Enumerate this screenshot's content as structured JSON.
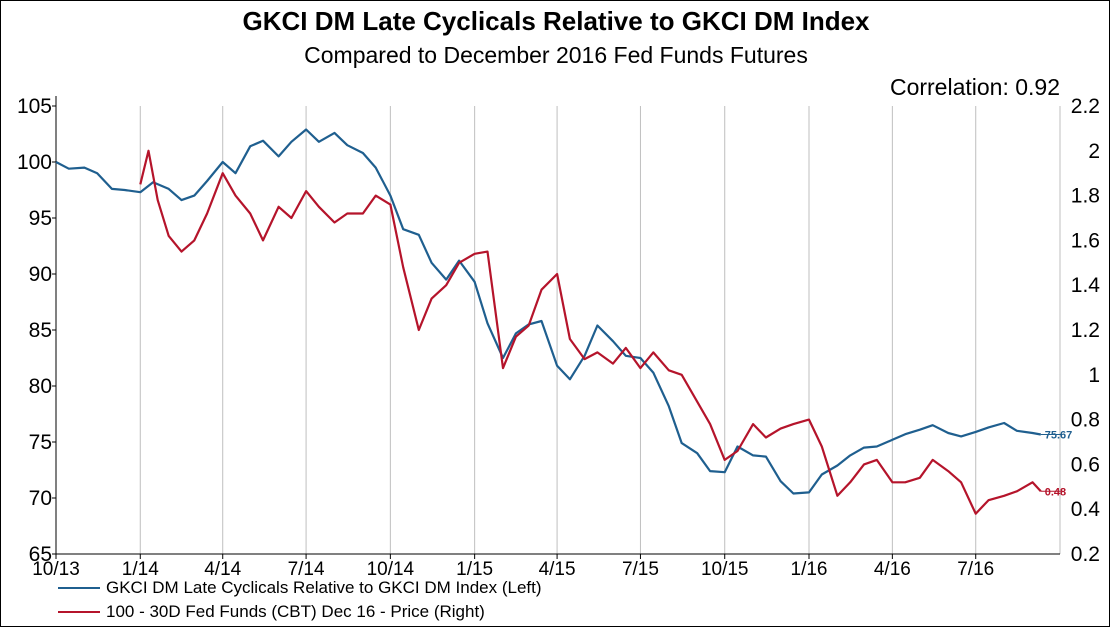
{
  "title": "GKCI DM Late Cyclicals Relative to GKCI DM Index",
  "subtitle": "Compared to December 2016 Fed Funds Futures",
  "correlation_text": "Correlation: 0.92",
  "colors": {
    "left": "#1f5f8f",
    "right": "#b5142b",
    "grid": "#bfbfbf"
  },
  "chart_data": {
    "type": "line",
    "title": "GKCI DM Late Cyclicals Relative to GKCI DM Index",
    "subtitle": "Compared to December 2016 Fed Funds Futures",
    "x_axis": {
      "start": "2013-10",
      "end": "2016-10",
      "tick_labels": [
        "10/13",
        "1/14",
        "4/14",
        "7/14",
        "10/14",
        "1/15",
        "4/15",
        "7/15",
        "10/15",
        "1/16",
        "4/16",
        "7/16"
      ]
    },
    "y_left": {
      "min": 65,
      "max": 105,
      "ticks": [
        "65",
        "70",
        "75",
        "80",
        "85",
        "90",
        "95",
        "100",
        "105"
      ]
    },
    "y_right": {
      "min": 0.2,
      "max": 2.2,
      "ticks": [
        "0.2",
        "0.4",
        "0.6",
        "0.8",
        "1",
        "1.2",
        "1.4",
        "1.6",
        "1.8",
        "2",
        "2.2"
      ]
    },
    "grid": "vertical",
    "legend_position": "bottom-left",
    "series": [
      {
        "name": "GKCI DM Late Cyclicals Relative to GKCI DM Index  (Left)",
        "axis": "left",
        "end_label": "75.67",
        "points": [
          [
            "2013-10-01",
            100.0
          ],
          [
            "2013-10-15",
            99.4
          ],
          [
            "2013-11-01",
            99.5
          ],
          [
            "2013-11-15",
            99.0
          ],
          [
            "2013-12-01",
            97.6
          ],
          [
            "2013-12-15",
            97.5
          ],
          [
            "2014-01-01",
            97.3
          ],
          [
            "2014-01-15",
            98.2
          ],
          [
            "2014-02-01",
            97.6
          ],
          [
            "2014-02-15",
            96.6
          ],
          [
            "2014-03-01",
            97.0
          ],
          [
            "2014-03-15",
            98.3
          ],
          [
            "2014-04-01",
            100.0
          ],
          [
            "2014-04-15",
            99.0
          ],
          [
            "2014-05-01",
            101.4
          ],
          [
            "2014-05-15",
            101.9
          ],
          [
            "2014-06-01",
            100.5
          ],
          [
            "2014-06-15",
            101.8
          ],
          [
            "2014-07-01",
            102.9
          ],
          [
            "2014-07-15",
            101.8
          ],
          [
            "2014-08-01",
            102.6
          ],
          [
            "2014-08-15",
            101.5
          ],
          [
            "2014-09-01",
            100.8
          ],
          [
            "2014-09-15",
            99.5
          ],
          [
            "2014-10-01",
            97.0
          ],
          [
            "2014-10-15",
            94.0
          ],
          [
            "2014-11-01",
            93.5
          ],
          [
            "2014-11-15",
            91.0
          ],
          [
            "2014-12-01",
            89.5
          ],
          [
            "2014-12-15",
            91.2
          ],
          [
            "2015-01-01",
            89.3
          ],
          [
            "2015-01-15",
            85.6
          ],
          [
            "2015-02-01",
            82.5
          ],
          [
            "2015-02-15",
            84.7
          ],
          [
            "2015-03-01",
            85.5
          ],
          [
            "2015-03-15",
            85.8
          ],
          [
            "2015-04-01",
            81.8
          ],
          [
            "2015-04-15",
            80.6
          ],
          [
            "2015-05-01",
            82.7
          ],
          [
            "2015-05-15",
            85.4
          ],
          [
            "2015-06-01",
            84.0
          ],
          [
            "2015-06-15",
            82.7
          ],
          [
            "2015-07-01",
            82.5
          ],
          [
            "2015-07-15",
            81.2
          ],
          [
            "2015-08-01",
            78.2
          ],
          [
            "2015-08-15",
            74.9
          ],
          [
            "2015-09-01",
            74.0
          ],
          [
            "2015-09-15",
            72.4
          ],
          [
            "2015-10-01",
            72.3
          ],
          [
            "2015-10-15",
            74.6
          ],
          [
            "2015-11-01",
            73.8
          ],
          [
            "2015-11-15",
            73.7
          ],
          [
            "2015-12-01",
            71.5
          ],
          [
            "2015-12-15",
            70.4
          ],
          [
            "2016-01-01",
            70.5
          ],
          [
            "2016-01-15",
            72.1
          ],
          [
            "2016-02-01",
            72.9
          ],
          [
            "2016-02-15",
            73.8
          ],
          [
            "2016-03-01",
            74.5
          ],
          [
            "2016-03-15",
            74.6
          ],
          [
            "2016-04-01",
            75.2
          ],
          [
            "2016-04-15",
            75.7
          ],
          [
            "2016-05-01",
            76.1
          ],
          [
            "2016-05-15",
            76.5
          ],
          [
            "2016-06-01",
            75.8
          ],
          [
            "2016-06-15",
            75.5
          ],
          [
            "2016-07-01",
            75.9
          ],
          [
            "2016-07-15",
            76.3
          ],
          [
            "2016-08-01",
            76.7
          ],
          [
            "2016-08-15",
            76.0
          ],
          [
            "2016-09-01",
            75.8
          ],
          [
            "2016-09-10",
            75.67
          ]
        ]
      },
      {
        "name": "100 - 30D Fed Funds (CBT) Dec 16 - Price  (Right)",
        "axis": "right",
        "end_label": "0.48",
        "points": [
          [
            "2014-01-01",
            1.85
          ],
          [
            "2014-01-10",
            2.0
          ],
          [
            "2014-01-20",
            1.78
          ],
          [
            "2014-02-01",
            1.62
          ],
          [
            "2014-02-15",
            1.55
          ],
          [
            "2014-03-01",
            1.6
          ],
          [
            "2014-03-15",
            1.72
          ],
          [
            "2014-04-01",
            1.9
          ],
          [
            "2014-04-15",
            1.8
          ],
          [
            "2014-05-01",
            1.72
          ],
          [
            "2014-05-15",
            1.6
          ],
          [
            "2014-06-01",
            1.75
          ],
          [
            "2014-06-15",
            1.7
          ],
          [
            "2014-07-01",
            1.82
          ],
          [
            "2014-07-15",
            1.75
          ],
          [
            "2014-08-01",
            1.68
          ],
          [
            "2014-08-15",
            1.72
          ],
          [
            "2014-09-01",
            1.72
          ],
          [
            "2014-09-15",
            1.8
          ],
          [
            "2014-10-01",
            1.76
          ],
          [
            "2014-10-15",
            1.48
          ],
          [
            "2014-11-01",
            1.2
          ],
          [
            "2014-11-15",
            1.34
          ],
          [
            "2014-12-01",
            1.4
          ],
          [
            "2014-12-15",
            1.5
          ],
          [
            "2015-01-01",
            1.54
          ],
          [
            "2015-01-15",
            1.55
          ],
          [
            "2015-02-01",
            1.03
          ],
          [
            "2015-02-15",
            1.17
          ],
          [
            "2015-03-01",
            1.22
          ],
          [
            "2015-03-15",
            1.38
          ],
          [
            "2015-04-01",
            1.45
          ],
          [
            "2015-04-15",
            1.16
          ],
          [
            "2015-05-01",
            1.07
          ],
          [
            "2015-05-15",
            1.1
          ],
          [
            "2015-06-01",
            1.05
          ],
          [
            "2015-06-15",
            1.12
          ],
          [
            "2015-07-01",
            1.03
          ],
          [
            "2015-07-15",
            1.1
          ],
          [
            "2015-08-01",
            1.02
          ],
          [
            "2015-08-15",
            1.0
          ],
          [
            "2015-09-01",
            0.88
          ],
          [
            "2015-09-15",
            0.78
          ],
          [
            "2015-10-01",
            0.62
          ],
          [
            "2015-10-15",
            0.66
          ],
          [
            "2015-11-01",
            0.78
          ],
          [
            "2015-11-15",
            0.72
          ],
          [
            "2015-12-01",
            0.76
          ],
          [
            "2015-12-15",
            0.78
          ],
          [
            "2016-01-01",
            0.8
          ],
          [
            "2016-01-15",
            0.68
          ],
          [
            "2016-02-01",
            0.46
          ],
          [
            "2016-02-15",
            0.52
          ],
          [
            "2016-03-01",
            0.6
          ],
          [
            "2016-03-15",
            0.62
          ],
          [
            "2016-04-01",
            0.52
          ],
          [
            "2016-04-15",
            0.52
          ],
          [
            "2016-05-01",
            0.54
          ],
          [
            "2016-05-15",
            0.62
          ],
          [
            "2016-06-01",
            0.57
          ],
          [
            "2016-06-15",
            0.52
          ],
          [
            "2016-07-01",
            0.38
          ],
          [
            "2016-07-15",
            0.44
          ],
          [
            "2016-08-01",
            0.46
          ],
          [
            "2016-08-15",
            0.48
          ],
          [
            "2016-09-01",
            0.52
          ],
          [
            "2016-09-10",
            0.48
          ]
        ]
      }
    ]
  }
}
